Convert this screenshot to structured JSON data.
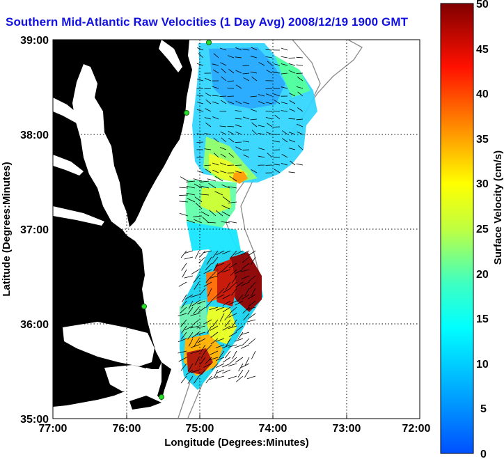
{
  "title": "Southern Mid-Atlantic Raw Velocities (1 Day Avg) 2008/12/19 1900 GMT",
  "xlabel": "Longitude (Degrees:Minutes)",
  "ylabel": "Latitude (Degrees:Minutes)",
  "x_ticks": [
    "77:00",
    "76:00",
    "75:00",
    "74:00",
    "73:00",
    "72:00"
  ],
  "y_ticks": [
    "39:00",
    "38:00",
    "37:00",
    "36:00",
    "35:00"
  ],
  "colorbar": {
    "label": "Surface Velocity (cm/s)",
    "ticks": [
      "50",
      "45",
      "40",
      "35",
      "30",
      "25",
      "20",
      "15",
      "10",
      "5",
      "0"
    ],
    "min": 0,
    "max": 50,
    "colormap": "jet"
  },
  "colors": {
    "land": "#54f5a0",
    "water": "#ffffff",
    "title": "#1010e0",
    "station": "#29e029"
  }
}
